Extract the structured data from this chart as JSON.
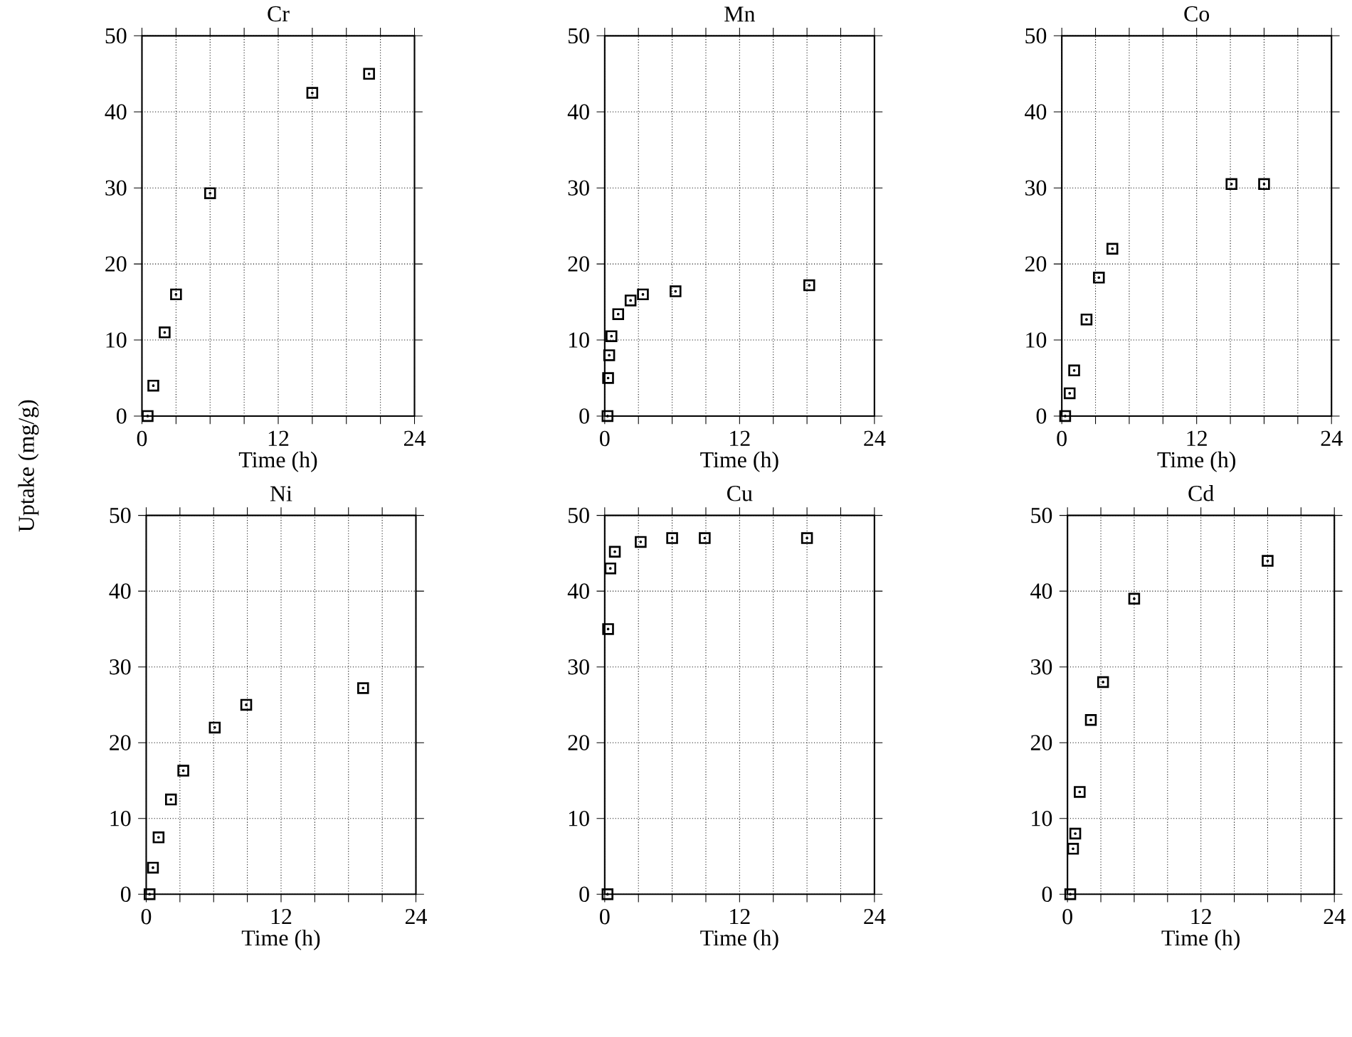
{
  "chart_data": [
    {
      "type": "scatter",
      "title": "Cr",
      "xlabel": "Time (h)",
      "ylabel": "Uptake (mg/g)",
      "x": [
        0.5,
        1,
        2,
        3,
        6,
        15,
        20
      ],
      "values": [
        0,
        4,
        11,
        16,
        29.3,
        42.5,
        45
      ],
      "color": "#000000",
      "marker": "square",
      "xlim": [
        0,
        24
      ],
      "ylim": [
        0,
        50
      ],
      "xticks": [
        0,
        {
          "value": 3,
          "label": null
        },
        {
          "value": 6,
          "label": null
        },
        {
          "value": 9,
          "label": null
        },
        12,
        {
          "value": 15,
          "label": null
        },
        {
          "value": 18,
          "label": null
        },
        {
          "value": 21,
          "label": null
        },
        24
      ],
      "yticks": [
        0,
        10,
        20,
        30,
        40,
        50
      ],
      "grid": true
    },
    {
      "type": "scatter",
      "title": "Mn",
      "xlabel": "Time (h)",
      "x": [
        0.25,
        0.3,
        0.4,
        0.6,
        1.2,
        2.3,
        3.4,
        6.3,
        18.2
      ],
      "values": [
        0,
        5,
        8,
        10.5,
        13.4,
        15.2,
        16,
        16.4,
        17.2
      ],
      "color": "#000000",
      "marker": "square",
      "xlim": [
        0,
        24
      ],
      "ylim": [
        0,
        50
      ],
      "xticks": [
        0,
        {
          "value": 3,
          "label": null
        },
        {
          "value": 6,
          "label": null
        },
        {
          "value": 9,
          "label": null
        },
        12,
        {
          "value": 15,
          "label": null
        },
        {
          "value": 18,
          "label": null
        },
        {
          "value": 21,
          "label": null
        },
        24
      ],
      "yticks": [
        0,
        10,
        20,
        30,
        40,
        50
      ],
      "grid": true
    },
    {
      "type": "scatter",
      "title": "Co",
      "xlabel": "Time (h)",
      "x": [
        0.3,
        0.7,
        1.1,
        2.2,
        3.3,
        4.5,
        15.1,
        18
      ],
      "values": [
        0,
        3,
        6,
        12.7,
        18.2,
        22,
        30.5,
        30.5
      ],
      "color": "#000000",
      "marker": "square",
      "xlim": [
        0,
        24
      ],
      "ylim": [
        0,
        50
      ],
      "xticks": [
        0,
        {
          "value": 3,
          "label": null
        },
        {
          "value": 6,
          "label": null
        },
        {
          "value": 9,
          "label": null
        },
        12,
        {
          "value": 15,
          "label": null
        },
        {
          "value": 18,
          "label": null
        },
        {
          "value": 21,
          "label": null
        },
        24
      ],
      "yticks": [
        0,
        10,
        20,
        30,
        40,
        50
      ],
      "grid": true
    },
    {
      "type": "scatter",
      "title": "Ni",
      "xlabel": "Time (h)",
      "x": [
        0.3,
        0.6,
        1.1,
        2.2,
        3.3,
        6.1,
        8.9,
        19.3
      ],
      "values": [
        0,
        3.5,
        7.5,
        12.5,
        16.3,
        22,
        25,
        27.2
      ],
      "color": "#000000",
      "marker": "square",
      "xlim": [
        0,
        24
      ],
      "ylim": [
        0,
        50
      ],
      "xticks": [
        0,
        {
          "value": 3,
          "label": null
        },
        {
          "value": 6,
          "label": null
        },
        {
          "value": 9,
          "label": null
        },
        12,
        {
          "value": 15,
          "label": null
        },
        {
          "value": 18,
          "label": null
        },
        {
          "value": 21,
          "label": null
        },
        24
      ],
      "yticks": [
        0,
        10,
        20,
        30,
        40,
        50
      ],
      "grid": true
    },
    {
      "type": "scatter",
      "title": "Cu",
      "xlabel": "Time (h)",
      "x": [
        0.25,
        0.3,
        0.5,
        0.9,
        3.2,
        6,
        8.9,
        18
      ],
      "values": [
        0,
        35,
        43,
        45.2,
        46.5,
        47,
        47,
        47
      ],
      "color": "#000000",
      "marker": "square",
      "xlim": [
        0,
        24
      ],
      "ylim": [
        0,
        50
      ],
      "xticks": [
        0,
        {
          "value": 3,
          "label": null
        },
        {
          "value": 6,
          "label": null
        },
        {
          "value": 9,
          "label": null
        },
        12,
        {
          "value": 15,
          "label": null
        },
        {
          "value": 18,
          "label": null
        },
        {
          "value": 21,
          "label": null
        },
        24
      ],
      "yticks": [
        0,
        10,
        20,
        30,
        40,
        50
      ],
      "grid": true
    },
    {
      "type": "scatter",
      "title": "Cd",
      "xlabel": "Time (h)",
      "x": [
        0.25,
        0.5,
        0.7,
        1.1,
        2.1,
        3.2,
        6,
        18
      ],
      "values": [
        0,
        6,
        8,
        13.5,
        23,
        28,
        39,
        44
      ],
      "color": "#000000",
      "marker": "square",
      "xlim": [
        0,
        24
      ],
      "ylim": [
        0,
        50
      ],
      "xticks": [
        0,
        {
          "value": 3,
          "label": null
        },
        {
          "value": 6,
          "label": null
        },
        {
          "value": 9,
          "label": null
        },
        12,
        {
          "value": 15,
          "label": null
        },
        {
          "value": 18,
          "label": null
        },
        {
          "value": 21,
          "label": null
        },
        24
      ],
      "yticks": [
        0,
        10,
        20,
        30,
        40,
        50
      ],
      "grid": true
    }
  ]
}
